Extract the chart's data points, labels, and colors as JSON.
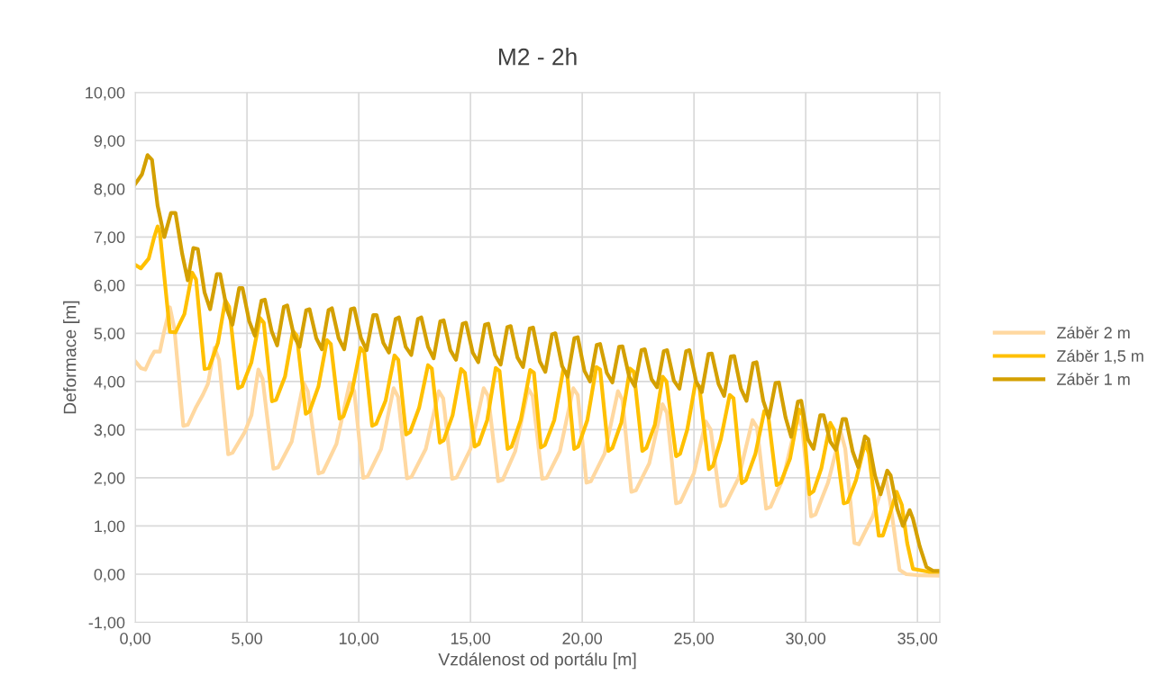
{
  "chart_data": {
    "type": "line",
    "title": "M2 - 2h",
    "xlabel": "Vzdálenost od portálu [m]",
    "ylabel": "Deformace [m]",
    "xlim": [
      0,
      36
    ],
    "ylim": [
      -1,
      10
    ],
    "xticks": [
      {
        "value": 0,
        "label": "0,00"
      },
      {
        "value": 5,
        "label": "5,00"
      },
      {
        "value": 10,
        "label": "10,00"
      },
      {
        "value": 15,
        "label": "15,00"
      },
      {
        "value": 20,
        "label": "20,00"
      },
      {
        "value": 25,
        "label": "25,00"
      },
      {
        "value": 30,
        "label": "30,00"
      },
      {
        "value": 35,
        "label": "35,00"
      }
    ],
    "yticks": [
      {
        "value": -1,
        "label": "-1,00"
      },
      {
        "value": 0,
        "label": "0,00"
      },
      {
        "value": 1,
        "label": "1,00"
      },
      {
        "value": 2,
        "label": "2,00"
      },
      {
        "value": 3,
        "label": "3,00"
      },
      {
        "value": 4,
        "label": "4,00"
      },
      {
        "value": 5,
        "label": "5,00"
      },
      {
        "value": 6,
        "label": "6,00"
      },
      {
        "value": 7,
        "label": "7,00"
      },
      {
        "value": 8,
        "label": "8,00"
      },
      {
        "value": 9,
        "label": "9,00"
      },
      {
        "value": 10,
        "label": "10,00"
      }
    ],
    "grid": true,
    "legend": "right",
    "marker": "none",
    "line_style": "solid",
    "series": [
      {
        "name": "Záběr 2 m",
        "color": "#ffd8a0",
        "x": [
          0,
          0.25,
          0.45,
          0.7,
          0.85,
          1.1,
          1.25,
          1.55,
          1.75,
          2.15,
          2.35,
          2.7,
          3.02,
          3.25,
          3.55,
          3.75,
          4.16,
          4.35,
          4.9,
          5.2,
          5.51,
          5.7,
          6.18,
          6.4,
          7.0,
          7.53,
          7.72,
          8.2,
          8.4,
          9.0,
          9.6,
          9.8,
          10.2,
          10.4,
          11.0,
          11.56,
          11.76,
          12.16,
          12.36,
          13.0,
          13.58,
          13.78,
          14.18,
          14.38,
          15.0,
          15.59,
          15.79,
          16.24,
          16.44,
          17.0,
          17.58,
          17.78,
          18.21,
          18.41,
          19.0,
          19.6,
          19.8,
          20.19,
          20.39,
          21.0,
          21.6,
          21.8,
          22.2,
          22.4,
          23.0,
          23.59,
          23.79,
          24.2,
          24.4,
          25.0,
          25.53,
          25.75,
          26.2,
          26.4,
          27.0,
          27.62,
          27.82,
          28.23,
          28.43,
          29.0,
          29.64,
          29.84,
          30.24,
          30.44,
          31.0,
          31.57,
          31.77,
          32.18,
          32.38,
          33.0,
          33.58,
          33.78,
          34.2,
          34.5,
          35.0,
          36.0
        ],
        "values": [
          4.42,
          4.28,
          4.25,
          4.5,
          4.62,
          4.62,
          4.95,
          5.54,
          5.1,
          3.08,
          3.1,
          3.45,
          3.72,
          3.95,
          4.7,
          4.45,
          2.49,
          2.52,
          2.95,
          3.3,
          4.25,
          4.05,
          2.19,
          2.22,
          2.75,
          3.98,
          3.8,
          2.09,
          2.12,
          2.7,
          3.98,
          3.8,
          2.0,
          2.03,
          2.6,
          3.86,
          3.68,
          1.99,
          2.02,
          2.6,
          3.8,
          3.65,
          1.98,
          2.01,
          2.6,
          3.86,
          3.7,
          1.93,
          1.96,
          2.55,
          3.85,
          3.7,
          1.98,
          2.0,
          2.55,
          3.86,
          3.72,
          1.9,
          1.93,
          2.5,
          3.8,
          3.62,
          1.71,
          1.74,
          2.3,
          3.53,
          3.35,
          1.47,
          1.5,
          2.1,
          3.17,
          3.0,
          1.41,
          1.44,
          2.0,
          3.2,
          3.05,
          1.36,
          1.4,
          2.0,
          3.27,
          3.05,
          1.2,
          1.24,
          1.9,
          2.95,
          2.6,
          0.65,
          0.62,
          1.2,
          2.02,
          1.5,
          0.09,
          0.0,
          -0.02,
          -0.03
        ]
      },
      {
        "name": "Záběr 1,5 m",
        "color": "#ffc000",
        "x": [
          0,
          0.25,
          0.6,
          0.85,
          1.0,
          1.1,
          1.55,
          1.8,
          2.2,
          2.55,
          2.72,
          3.1,
          3.3,
          3.7,
          4.03,
          4.2,
          4.6,
          4.78,
          5.2,
          5.58,
          5.75,
          6.12,
          6.3,
          6.7,
          7.06,
          7.23,
          7.63,
          7.8,
          8.2,
          8.58,
          8.75,
          9.14,
          9.32,
          9.7,
          10.08,
          10.25,
          10.6,
          10.78,
          11.2,
          11.6,
          11.77,
          12.12,
          12.3,
          12.7,
          13.1,
          13.27,
          13.63,
          13.8,
          14.2,
          14.58,
          14.75,
          15.19,
          15.37,
          15.75,
          16.13,
          16.3,
          16.66,
          16.84,
          17.25,
          17.67,
          17.84,
          18.15,
          18.33,
          18.75,
          19.15,
          19.32,
          19.64,
          19.82,
          20.23,
          20.63,
          20.8,
          21.17,
          21.35,
          21.75,
          22.14,
          22.31,
          22.69,
          22.87,
          23.25,
          23.6,
          23.77,
          24.2,
          24.38,
          24.7,
          25.07,
          25.24,
          25.67,
          25.85,
          26.2,
          26.6,
          26.77,
          27.14,
          27.32,
          27.75,
          28.15,
          28.32,
          28.7,
          28.88,
          29.3,
          29.7,
          29.87,
          30.17,
          30.35,
          30.7,
          31.1,
          31.27,
          31.7,
          31.88,
          32.25,
          32.66,
          32.83,
          33.27,
          33.45,
          33.7,
          34.07,
          34.3,
          34.54,
          34.8,
          35.5,
          36.0
        ],
        "values": [
          6.42,
          6.35,
          6.55,
          7.0,
          7.22,
          7.1,
          5.03,
          5.02,
          5.4,
          6.26,
          6.12,
          4.26,
          4.28,
          4.8,
          5.69,
          5.55,
          3.86,
          3.9,
          4.4,
          5.32,
          5.22,
          3.59,
          3.62,
          4.1,
          5.05,
          4.95,
          3.33,
          3.38,
          3.9,
          4.86,
          4.78,
          3.23,
          3.28,
          3.8,
          4.7,
          4.6,
          3.08,
          3.12,
          3.6,
          4.54,
          4.45,
          2.9,
          2.95,
          3.45,
          4.34,
          4.27,
          2.73,
          2.78,
          3.3,
          4.26,
          4.18,
          2.65,
          2.7,
          3.2,
          4.28,
          4.22,
          2.6,
          2.65,
          3.2,
          4.24,
          4.18,
          2.63,
          2.68,
          3.2,
          4.24,
          4.18,
          2.6,
          2.65,
          3.2,
          4.3,
          4.25,
          2.56,
          2.62,
          3.15,
          4.27,
          4.2,
          2.56,
          2.62,
          3.1,
          4.1,
          4.0,
          2.45,
          2.5,
          3.0,
          3.98,
          3.9,
          2.18,
          2.25,
          2.8,
          3.72,
          3.65,
          1.89,
          1.95,
          2.5,
          3.39,
          3.3,
          1.85,
          1.9,
          2.4,
          3.42,
          3.3,
          1.66,
          1.72,
          2.2,
          3.14,
          3.0,
          1.47,
          1.5,
          1.95,
          2.73,
          2.5,
          0.8,
          0.8,
          1.15,
          1.71,
          1.44,
          0.65,
          0.11,
          0.05,
          0.05
        ]
      },
      {
        "name": "Záběr 1 m",
        "color": "#d4a000",
        "x": [
          0,
          0.3,
          0.55,
          0.75,
          1.0,
          1.3,
          1.6,
          1.8,
          2.1,
          2.35,
          2.6,
          2.8,
          3.1,
          3.35,
          3.65,
          3.8,
          4.1,
          4.35,
          4.65,
          4.8,
          5.1,
          5.35,
          5.65,
          5.8,
          6.1,
          6.35,
          6.65,
          6.8,
          7.1,
          7.35,
          7.65,
          7.8,
          8.1,
          8.35,
          8.65,
          8.8,
          9.1,
          9.35,
          9.65,
          9.8,
          10.1,
          10.35,
          10.65,
          10.8,
          11.1,
          11.35,
          11.65,
          11.8,
          12.1,
          12.35,
          12.65,
          12.8,
          13.1,
          13.35,
          13.65,
          13.8,
          14.1,
          14.35,
          14.65,
          14.8,
          15.1,
          15.35,
          15.65,
          15.8,
          16.1,
          16.35,
          16.65,
          16.8,
          17.1,
          17.35,
          17.65,
          17.8,
          18.1,
          18.35,
          18.65,
          18.8,
          19.1,
          19.35,
          19.65,
          19.8,
          20.1,
          20.35,
          20.65,
          20.8,
          21.1,
          21.35,
          21.65,
          21.8,
          22.1,
          22.35,
          22.65,
          22.8,
          23.1,
          23.35,
          23.65,
          23.8,
          24.1,
          24.35,
          24.65,
          24.8,
          25.1,
          25.35,
          25.65,
          25.8,
          26.1,
          26.35,
          26.65,
          26.8,
          27.1,
          27.35,
          27.65,
          27.8,
          28.1,
          28.35,
          28.65,
          28.8,
          29.1,
          29.35,
          29.65,
          29.8,
          30.1,
          30.35,
          30.65,
          30.8,
          31.1,
          31.35,
          31.65,
          31.8,
          32.1,
          32.35,
          32.65,
          32.8,
          33.1,
          33.35,
          33.65,
          33.8,
          34.1,
          34.35,
          34.65,
          34.8,
          35.1,
          35.4,
          35.7,
          36.0
        ],
        "values": [
          8.1,
          8.3,
          8.7,
          8.6,
          7.65,
          7.0,
          7.5,
          7.5,
          6.65,
          6.1,
          6.77,
          6.75,
          5.85,
          5.5,
          6.23,
          6.23,
          5.5,
          5.18,
          5.94,
          5.94,
          5.25,
          4.95,
          5.68,
          5.7,
          5.05,
          4.75,
          5.55,
          5.58,
          4.95,
          4.72,
          5.48,
          5.5,
          4.9,
          4.67,
          5.48,
          5.52,
          4.9,
          4.67,
          5.5,
          5.52,
          4.9,
          4.65,
          5.38,
          5.38,
          4.8,
          4.6,
          5.3,
          5.33,
          4.72,
          4.55,
          5.3,
          5.33,
          4.72,
          4.48,
          5.25,
          5.27,
          4.65,
          4.45,
          5.2,
          5.22,
          4.6,
          4.4,
          5.18,
          5.2,
          4.55,
          4.35,
          5.13,
          5.15,
          4.5,
          4.3,
          5.1,
          5.12,
          4.42,
          4.2,
          4.98,
          5.0,
          4.32,
          4.1,
          4.9,
          4.92,
          4.22,
          4.0,
          4.76,
          4.78,
          4.18,
          3.98,
          4.72,
          4.73,
          4.1,
          3.9,
          4.65,
          4.67,
          4.05,
          3.88,
          4.63,
          4.65,
          4.02,
          3.85,
          4.63,
          4.65,
          4.0,
          3.78,
          4.57,
          4.58,
          3.95,
          3.7,
          4.52,
          4.53,
          3.85,
          3.6,
          4.38,
          4.4,
          3.6,
          3.25,
          3.97,
          3.98,
          3.25,
          2.85,
          3.58,
          3.6,
          2.8,
          2.6,
          3.3,
          3.3,
          2.75,
          2.58,
          3.22,
          3.22,
          2.55,
          2.22,
          2.86,
          2.8,
          2.05,
          1.66,
          2.15,
          2.05,
          1.35,
          1.0,
          1.33,
          1.15,
          0.58,
          0.15,
          0.07,
          0.07
        ]
      }
    ]
  }
}
